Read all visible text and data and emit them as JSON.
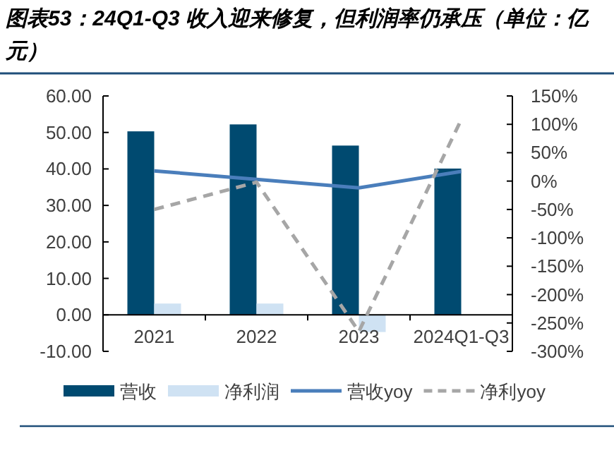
{
  "chart_data": {
    "type": "bar",
    "title": "图表53：24Q1-Q3 收入迎来修复，但利润率仍承压（单位：亿元）",
    "categories": [
      "2021",
      "2022",
      "2023",
      "2024Q1-Q3"
    ],
    "series": [
      {
        "name": "营收",
        "color": "#004a70",
        "values": [
          50.3,
          52.2,
          46.4,
          40.1
        ]
      },
      {
        "name": "净利润",
        "color": "#cfe2f3",
        "values": [
          3.1,
          3.1,
          -4.7,
          null
        ]
      },
      {
        "name": "营收yoy",
        "type": "line",
        "axis": "y2",
        "color": "#4a7ebb",
        "line_style": "solid",
        "values": [
          18,
          3,
          -12,
          17
        ]
      },
      {
        "name": "净利yoy",
        "type": "line",
        "axis": "y2",
        "color": "#a6a6a6",
        "line_style": "dashed",
        "values": [
          -50,
          -2,
          -265,
          108
        ]
      }
    ],
    "ylim": [
      -10,
      60
    ],
    "yticks": [
      {
        "value": -10,
        "label": "-10.00"
      },
      {
        "value": 0,
        "label": "0.00"
      },
      {
        "value": 10,
        "label": "10.00"
      },
      {
        "value": 20,
        "label": "20.00"
      },
      {
        "value": 30,
        "label": "30.00"
      },
      {
        "value": 40,
        "label": "40.00"
      },
      {
        "value": 50,
        "label": "50.00"
      },
      {
        "value": 60,
        "label": "60.00"
      }
    ],
    "y2lim": [
      -300,
      150
    ],
    "y2ticks": [
      {
        "value": -300,
        "label": "-300%"
      },
      {
        "value": -250,
        "label": "-250%"
      },
      {
        "value": -200,
        "label": "-200%"
      },
      {
        "value": -150,
        "label": "-150%"
      },
      {
        "value": -100,
        "label": "-100%"
      },
      {
        "value": -50,
        "label": "-50%"
      },
      {
        "value": 0,
        "label": "0%"
      },
      {
        "value": 50,
        "label": "50%"
      },
      {
        "value": 100,
        "label": "100%"
      },
      {
        "value": 150,
        "label": "150%"
      }
    ],
    "grid": false,
    "legend": "bottom"
  }
}
